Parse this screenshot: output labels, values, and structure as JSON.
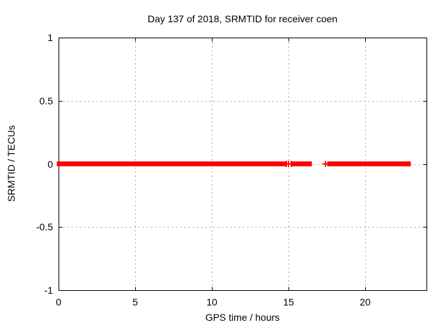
{
  "chart_data": {
    "type": "scatter",
    "title": "Day 137 of 2018, SRMTID for receiver coen",
    "xlabel": "GPS time / hours",
    "ylabel": "SRMTID / TECUs",
    "xlim": [
      0,
      24
    ],
    "ylim": [
      -1,
      1
    ],
    "xticks": [
      0,
      5,
      10,
      15,
      20
    ],
    "yticks": [
      1,
      0.5,
      0,
      -0.5,
      -1
    ],
    "xtick_labels": [
      "0",
      "5",
      "10",
      "15",
      "20"
    ],
    "ytick_labels": [
      "1",
      "0.5",
      "0",
      "-0.5",
      "-1"
    ],
    "grid": true,
    "legend_position": "none",
    "marker": "plus",
    "series": [
      {
        "name": "SRMTID",
        "color": "#ff0000",
        "y_value": 0,
        "dense_segments_x_hours": [
          [
            0,
            1.25
          ],
          [
            1.32,
            1.52
          ],
          [
            1.64,
            14.73
          ],
          [
            15.32,
            16.41
          ],
          [
            17.64,
            22.86
          ]
        ],
        "isolated_points_x_hours": [
          14.86,
          15.0,
          15.18,
          17.41
        ]
      }
    ],
    "colors": {
      "background": "#ffffff",
      "axis": "#000000",
      "text": "#000000",
      "grid": "#a0a0a0",
      "marker": "#ff0000"
    }
  }
}
